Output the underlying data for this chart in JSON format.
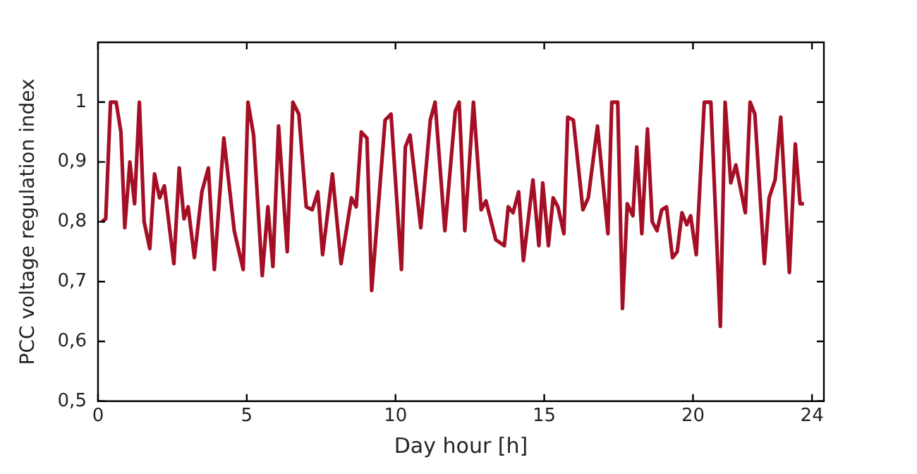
{
  "chart_data": {
    "type": "line",
    "xlabel": "Day hour [h]",
    "ylabel": "PCC voltage regulation index",
    "xlim": [
      0,
      24.4
    ],
    "xticks": [
      0,
      5,
      10,
      15,
      20,
      24
    ],
    "ylim": [
      0.5,
      1.1
    ],
    "yticks": [
      {
        "value": 0.5,
        "label": "0,5"
      },
      {
        "value": 0.6,
        "label": "0,6"
      },
      {
        "value": 0.7,
        "label": "0,7"
      },
      {
        "value": 0.8,
        "label": "0,8"
      },
      {
        "value": 0.9,
        "label": "0,9"
      },
      {
        "value": 1,
        "label": "1"
      }
    ],
    "grid": false,
    "legend": false,
    "marker": "none",
    "line_style": "solid",
    "x": [
      0.13,
      0.26,
      0.42,
      0.61,
      0.77,
      0.9,
      1.07,
      1.23,
      1.39,
      1.55,
      1.74,
      1.9,
      2.07,
      2.23,
      2.55,
      2.73,
      2.89,
      3.03,
      3.24,
      3.49,
      3.71,
      3.91,
      4.23,
      4.58,
      4.88,
      5.04,
      5.23,
      5.52,
      5.71,
      5.88,
      6.07,
      6.36,
      6.55,
      6.75,
      7.0,
      7.2,
      7.39,
      7.55,
      7.88,
      8.17,
      8.52,
      8.68,
      8.85,
      9.04,
      9.2,
      9.65,
      9.85,
      10.2,
      10.33,
      10.49,
      10.85,
      11.17,
      11.33,
      11.66,
      12.01,
      12.14,
      12.33,
      12.62,
      12.88,
      13.04,
      13.37,
      13.66,
      13.79,
      13.95,
      14.14,
      14.3,
      14.62,
      14.82,
      14.95,
      15.14,
      15.3,
      15.46,
      15.66,
      15.79,
      15.98,
      16.3,
      16.48,
      16.79,
      17.14,
      17.27,
      17.47,
      17.63,
      17.79,
      17.98,
      18.11,
      18.28,
      18.47,
      18.63,
      18.79,
      18.95,
      19.11,
      19.31,
      19.47,
      19.63,
      19.79,
      19.92,
      20.11,
      20.38,
      20.6,
      20.92,
      21.08,
      21.27,
      21.44,
      21.76,
      21.92,
      22.08,
      22.4,
      22.56,
      22.76,
      22.95,
      23.24,
      23.44,
      23.6,
      23.73
    ],
    "series": [
      {
        "color": "#a50f26",
        "values": [
          0.8,
          0.805,
          1.0,
          1.0,
          0.95,
          0.79,
          0.9,
          0.83,
          1.0,
          0.8,
          0.755,
          0.88,
          0.84,
          0.86,
          0.73,
          0.89,
          0.805,
          0.825,
          0.74,
          0.85,
          0.89,
          0.72,
          0.94,
          0.785,
          0.72,
          1.0,
          0.945,
          0.71,
          0.825,
          0.725,
          0.96,
          0.75,
          1.0,
          0.98,
          0.825,
          0.82,
          0.85,
          0.745,
          0.88,
          0.73,
          0.84,
          0.825,
          0.95,
          0.94,
          0.685,
          0.97,
          0.98,
          0.72,
          0.925,
          0.945,
          0.79,
          0.97,
          1.0,
          0.785,
          0.985,
          1.0,
          0.785,
          1.0,
          0.82,
          0.835,
          0.77,
          0.76,
          0.825,
          0.815,
          0.85,
          0.735,
          0.87,
          0.76,
          0.865,
          0.76,
          0.84,
          0.825,
          0.78,
          0.975,
          0.97,
          0.82,
          0.84,
          0.96,
          0.78,
          1.0,
          1.0,
          0.655,
          0.83,
          0.81,
          0.925,
          0.78,
          0.955,
          0.8,
          0.785,
          0.82,
          0.825,
          0.74,
          0.75,
          0.815,
          0.795,
          0.81,
          0.745,
          1.0,
          1.0,
          0.625,
          1.0,
          0.865,
          0.895,
          0.815,
          1.0,
          0.98,
          0.73,
          0.84,
          0.87,
          0.975,
          0.715,
          0.93,
          0.83,
          0.83
        ]
      }
    ]
  }
}
